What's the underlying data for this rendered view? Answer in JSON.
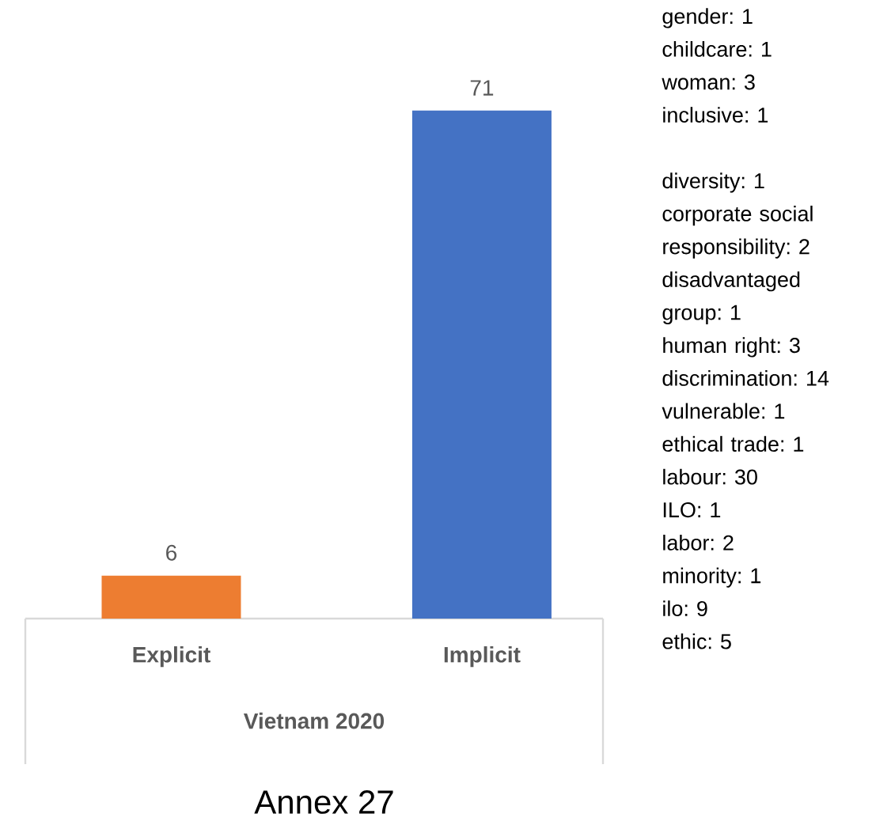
{
  "chart_data": {
    "type": "bar",
    "title": "Annex 27",
    "xlabel": "Vietnam 2020",
    "categories": [
      "Explicit",
      "Implicit"
    ],
    "values": [
      6,
      71
    ],
    "colors": [
      "#ed7d31",
      "#4472c4"
    ],
    "data_labels": true,
    "annotations": [
      "gender: 1",
      "childcare: 1",
      "woman: 3",
      "inclusive: 1",
      "diversity: 1",
      "corporate social responsibility: 2",
      "disadvantaged group: 1",
      "human right: 3",
      "discrimination: 14",
      "vulnerable: 1",
      "ethical trade: 1",
      "labour: 30",
      "ILO: 1",
      "labor: 2",
      "minority: 1",
      "ilo: 9",
      "ethic: 5"
    ]
  }
}
